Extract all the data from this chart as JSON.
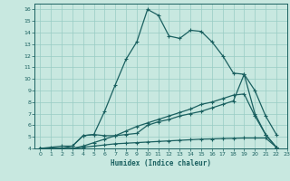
{
  "title": "",
  "xlabel": "Humidex (Indice chaleur)",
  "bg_color": "#c8e8e0",
  "grid_color": "#98ccc4",
  "line_color": "#1a6060",
  "xlim": [
    -0.5,
    23
  ],
  "ylim": [
    4,
    16.5
  ],
  "yticks": [
    4,
    5,
    6,
    7,
    8,
    9,
    10,
    11,
    12,
    13,
    14,
    15,
    16
  ],
  "xticks": [
    0,
    1,
    2,
    3,
    4,
    5,
    6,
    7,
    8,
    9,
    10,
    11,
    12,
    13,
    14,
    15,
    16,
    17,
    18,
    19,
    20,
    21,
    22,
    23
  ],
  "line1_x": [
    0,
    1,
    2,
    3,
    4,
    5,
    6,
    7,
    8,
    9,
    10,
    11,
    12,
    13,
    14,
    15,
    16,
    17,
    18,
    19,
    20,
    21,
    22
  ],
  "line1_y": [
    4.0,
    4.1,
    4.2,
    4.2,
    5.1,
    5.2,
    7.2,
    9.5,
    11.7,
    13.2,
    16.0,
    15.5,
    13.7,
    13.5,
    14.2,
    14.1,
    13.2,
    12.0,
    10.5,
    10.4,
    9.0,
    6.8,
    5.2
  ],
  "line2_x": [
    0,
    1,
    2,
    3,
    4,
    5,
    6,
    7,
    8,
    9,
    10,
    11,
    12,
    13,
    14,
    15,
    16,
    17,
    18,
    19,
    20,
    21,
    22
  ],
  "line2_y": [
    4.0,
    4.0,
    4.0,
    4.0,
    4.2,
    4.5,
    4.8,
    5.1,
    5.5,
    5.9,
    6.2,
    6.5,
    6.8,
    7.1,
    7.4,
    7.8,
    8.0,
    8.3,
    8.6,
    8.7,
    6.8,
    5.2,
    4.1
  ],
  "line3_x": [
    0,
    1,
    2,
    3,
    4,
    5,
    6,
    7,
    8,
    9,
    10,
    11,
    12,
    13,
    14,
    15,
    16,
    17,
    18,
    19,
    20,
    21,
    22
  ],
  "line3_y": [
    4.0,
    4.0,
    4.0,
    4.0,
    4.1,
    4.2,
    4.3,
    4.4,
    4.45,
    4.5,
    4.55,
    4.6,
    4.65,
    4.7,
    4.75,
    4.8,
    4.82,
    4.85,
    4.87,
    4.9,
    4.9,
    4.9,
    4.1
  ],
  "line4_x": [
    0,
    2,
    3,
    4,
    5,
    6,
    7,
    8,
    9,
    10,
    11,
    12,
    13,
    14,
    15,
    16,
    17,
    18,
    19,
    20,
    21,
    22
  ],
  "line4_y": [
    4.0,
    4.0,
    4.2,
    5.1,
    5.2,
    5.1,
    5.1,
    5.2,
    5.3,
    6.0,
    6.3,
    6.5,
    6.8,
    7.0,
    7.2,
    7.5,
    7.8,
    8.1,
    10.4,
    7.0,
    5.2,
    4.1
  ]
}
